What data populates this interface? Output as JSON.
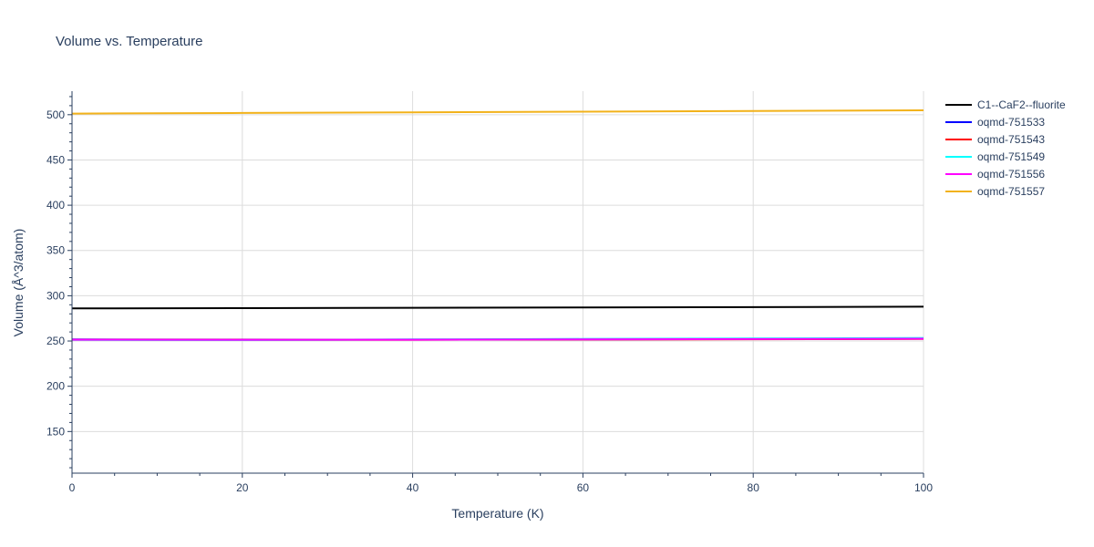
{
  "chart_data": {
    "type": "line",
    "title": "Volume vs. Temperature",
    "xlabel": "Temperature (K)",
    "ylabel": "Volume (Å^3/atom)",
    "xlim": [
      0,
      100
    ],
    "ylim": [
      104,
      526
    ],
    "xticks": [
      0,
      20,
      40,
      60,
      80,
      100
    ],
    "yticks": [
      150,
      200,
      250,
      300,
      350,
      400,
      450,
      500
    ],
    "grid": true,
    "legend_position": "top-right",
    "series": [
      {
        "name": "C1--CaF2--fluorite",
        "color": "#000000",
        "x": [
          0,
          20,
          40,
          60,
          80,
          100
        ],
        "y": [
          286.0,
          286.3,
          286.7,
          287.0,
          287.4,
          287.9
        ]
      },
      {
        "name": "oqmd-751533",
        "color": "#0000ff",
        "x": [
          0,
          20,
          40,
          60,
          80,
          100
        ],
        "y": [
          251.8,
          251.5,
          251.6,
          251.9,
          252.2,
          252.6
        ]
      },
      {
        "name": "oqmd-751543",
        "color": "#ff0000",
        "x": [
          0,
          20,
          40,
          60,
          80,
          100
        ],
        "y": [
          251.5,
          251.3,
          251.4,
          251.7,
          252.0,
          252.4
        ]
      },
      {
        "name": "oqmd-751549",
        "color": "#00ffff",
        "x": [
          0,
          20,
          40,
          60,
          80,
          100
        ],
        "y": [
          251.2,
          251.0,
          251.6,
          252.3,
          252.8,
          253.3
        ]
      },
      {
        "name": "oqmd-751556",
        "color": "#ff00ff",
        "x": [
          0,
          20,
          40,
          60,
          80,
          100
        ],
        "y": [
          251.4,
          251.2,
          251.4,
          251.8,
          252.2,
          252.6
        ]
      },
      {
        "name": "oqmd-751557",
        "color": "#f2b21a",
        "x": [
          0,
          20,
          40,
          60,
          80,
          100
        ],
        "y": [
          501.2,
          501.9,
          502.6,
          503.3,
          504.0,
          504.9
        ]
      }
    ]
  }
}
